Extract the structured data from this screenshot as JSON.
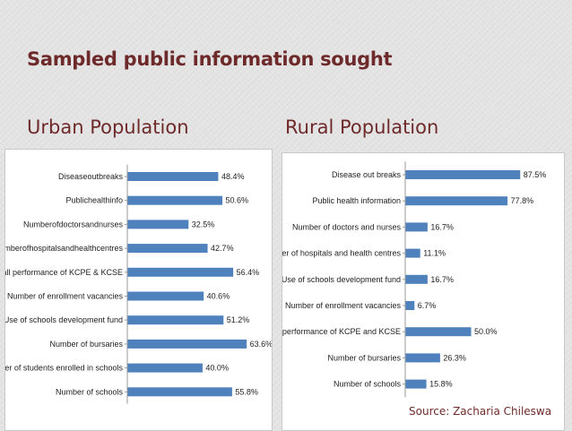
{
  "slide": {
    "title": "Sampled public information sought",
    "urban_heading": "Urban Population",
    "rural_heading": "Rural Population",
    "source": "Source: Zacharia Chileswa"
  },
  "colors": {
    "bar": "#4f81bd",
    "heading": "#6e2a2a"
  },
  "chart_data": [
    {
      "type": "bar",
      "orientation": "horizontal",
      "categories": [
        "Diseaseoutbreaks",
        "Publichealthinfo",
        "Numberofdoctorsandnurses",
        "Numberofhospitalsandhealthcentres",
        "Overall performance of KCPE & KCSE",
        "Number of enrollment vacancies",
        "Use of schools development fund",
        "Number of bursaries",
        "Number of students enrolled in schools",
        "Number of schools"
      ],
      "values": [
        48.4,
        50.6,
        32.5,
        42.7,
        56.4,
        40.6,
        51.2,
        63.6,
        40.0,
        55.8
      ],
      "value_labels": [
        "48.4%",
        "50.6%",
        "32.5%",
        "42.7%",
        "56.4%",
        "40.6%",
        "51.2%",
        "63.6%",
        "40.0%",
        "55.8%"
      ],
      "xlim": [
        0,
        70
      ],
      "grid": false,
      "legend": "none"
    },
    {
      "type": "bar",
      "orientation": "horizontal",
      "categories": [
        "Disease out breaks",
        "Public health information",
        "Number of doctors and nurses",
        "Number of hospitals and health centres",
        "Use of schools development fund",
        "Number of enrollment vacancies",
        "Overall performance of KCPE and KCSE",
        "Number of bursaries",
        "Number of schools"
      ],
      "values": [
        87.5,
        77.8,
        16.7,
        11.1,
        16.7,
        6.7,
        50.0,
        26.3,
        15.8
      ],
      "value_labels": [
        "87.5%",
        "77.8%",
        "16.7%",
        "11.1%",
        "16.7%",
        "6.7%",
        "50.0%",
        "26.3%",
        "15.8%"
      ],
      "xlim": [
        0,
        100
      ],
      "grid": false,
      "legend": "none"
    }
  ]
}
